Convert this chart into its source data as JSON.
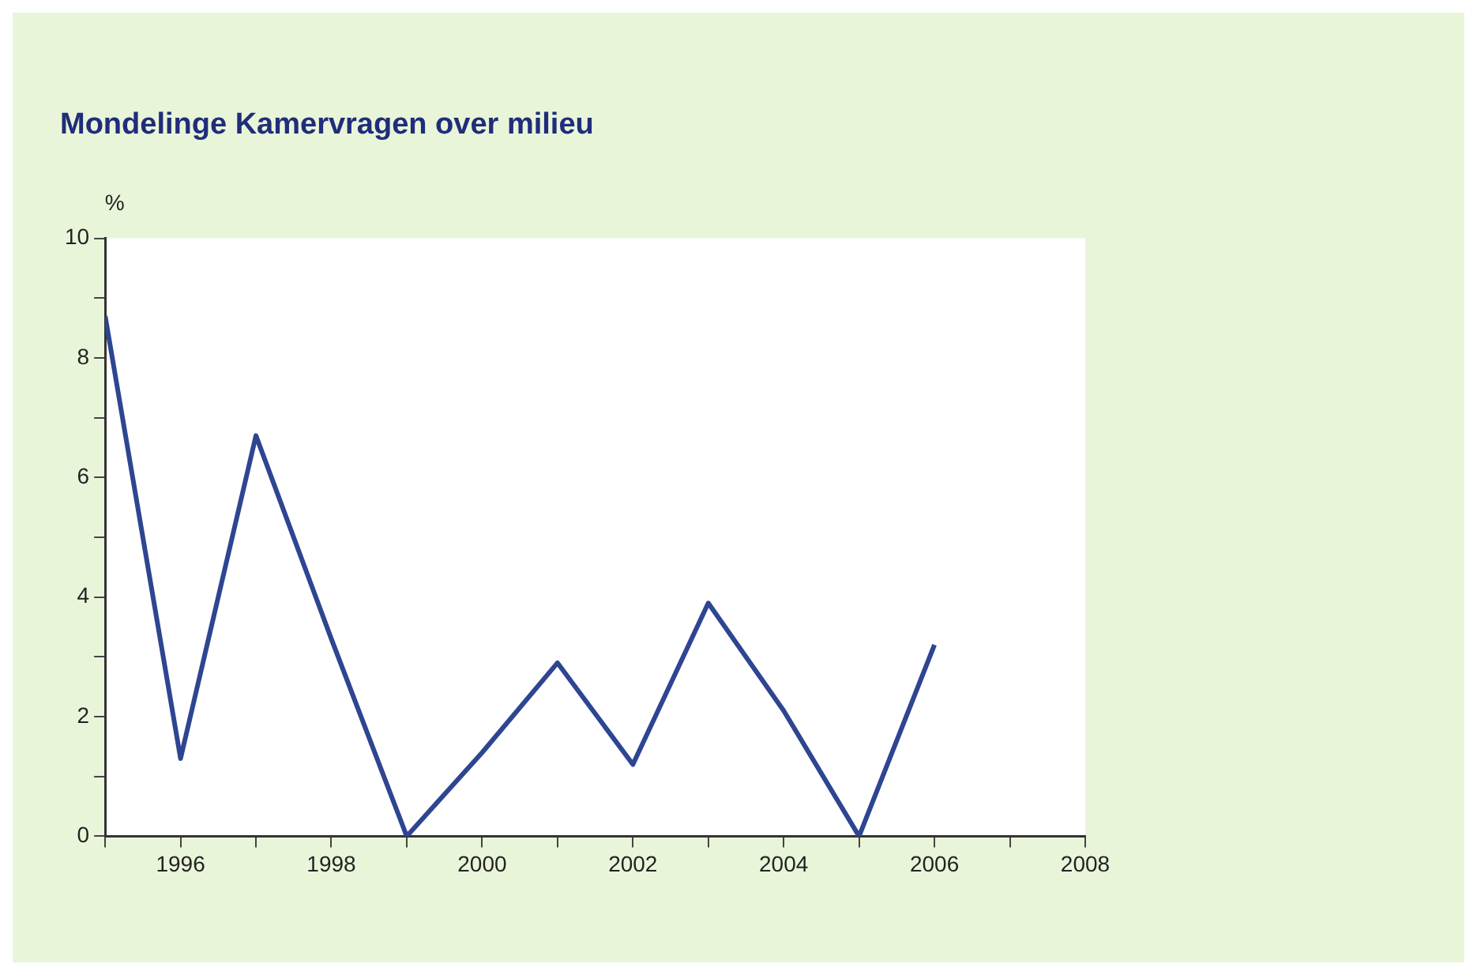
{
  "chart_data": {
    "type": "line",
    "title": "Mondelinge Kamervragen over milieu",
    "ylabel": "%",
    "x": [
      1995,
      1996,
      1997,
      1998,
      1999,
      2000,
      2001,
      2002,
      2003,
      2004,
      2005,
      2006
    ],
    "series": [
      {
        "color": "#2e4591",
        "values": [
          8.7,
          1.3,
          6.7,
          3.3,
          0,
          1.4,
          2.9,
          1.2,
          3.9,
          2.1,
          0,
          3.2
        ]
      }
    ],
    "xlim": [
      1995,
      2008
    ],
    "xticks": [
      {
        "value": 1995,
        "label": null
      },
      1996,
      {
        "value": 1997,
        "label": null
      },
      1998,
      {
        "value": 1999,
        "label": null
      },
      2000,
      {
        "value": 2001,
        "label": null
      },
      2002,
      {
        "value": 2003,
        "label": null
      },
      2004,
      {
        "value": 2005,
        "label": null
      },
      2006,
      {
        "value": 2007,
        "label": null
      },
      2008
    ],
    "ylim": [
      0,
      10
    ],
    "yticks": [
      0,
      {
        "value": 1,
        "label": null
      },
      2,
      {
        "value": 3,
        "label": null
      },
      4,
      {
        "value": 5,
        "label": null
      },
      6,
      {
        "value": 7,
        "label": null
      },
      8,
      {
        "value": 9,
        "label": null
      },
      10
    ],
    "grid": false,
    "legend": false,
    "marker": "none",
    "line_style": "solid"
  }
}
